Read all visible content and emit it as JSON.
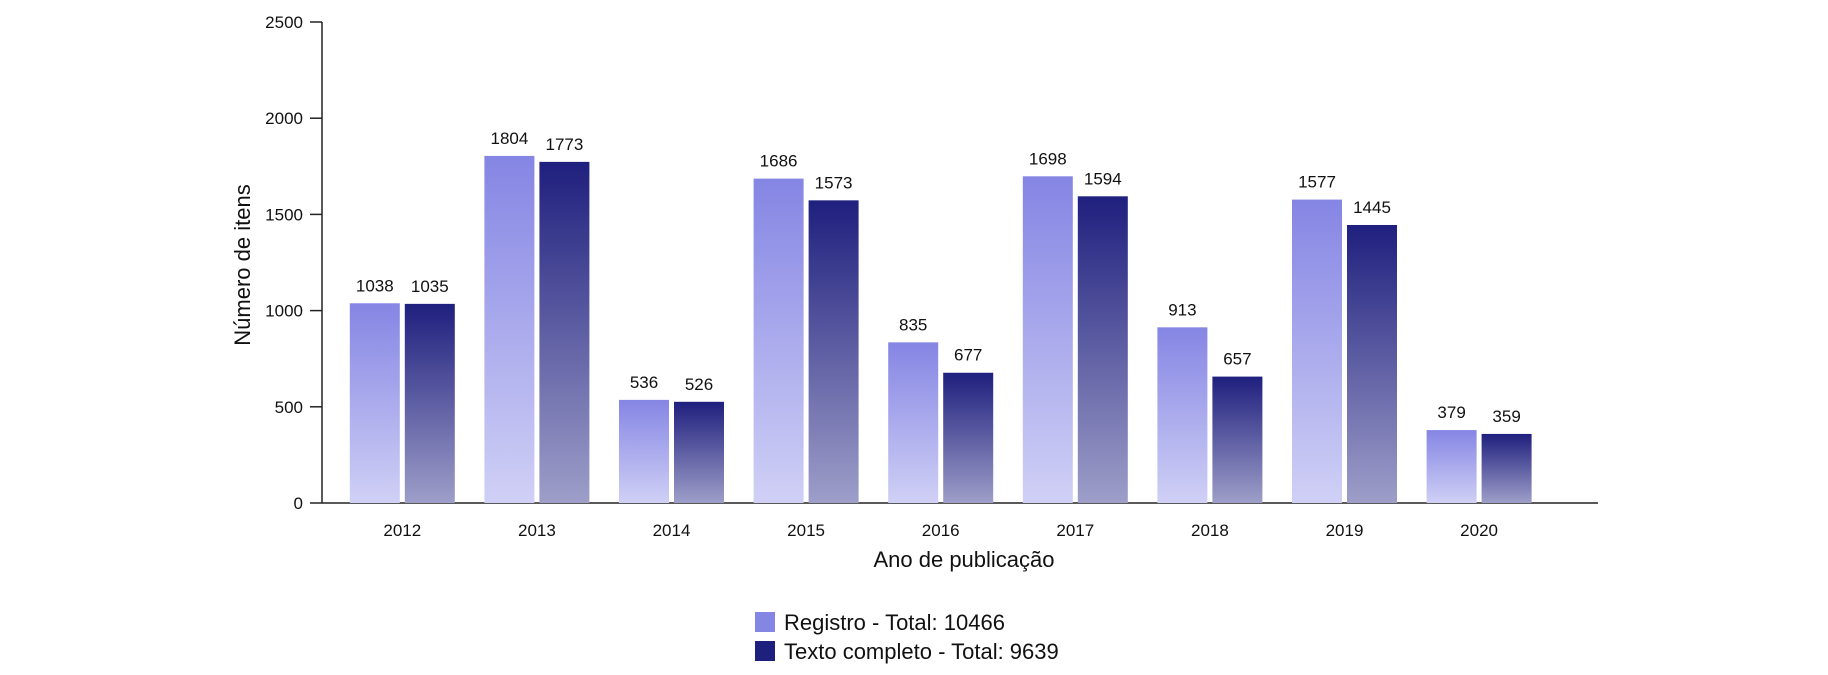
{
  "chart_data": {
    "type": "bar",
    "xlabel": "Ano de publicação",
    "ylabel": "Número de itens",
    "ylim": [
      0,
      2500
    ],
    "yticks": [
      0,
      500,
      1000,
      1500,
      2000,
      2500
    ],
    "categories": [
      "2012",
      "2013",
      "2014",
      "2015",
      "2016",
      "2017",
      "2018",
      "2019",
      "2020"
    ],
    "series": [
      {
        "name": "Registro - Total: 10466",
        "values": [
          1038,
          1804,
          536,
          1686,
          835,
          1698,
          913,
          1577,
          379
        ],
        "color_top": "#8585e4",
        "color_bottom": "#d0d0f6"
      },
      {
        "name": "Texto completo - Total: 9639",
        "values": [
          1035,
          1773,
          526,
          1573,
          677,
          1594,
          657,
          1445,
          359
        ],
        "color_top": "#1f1f7e",
        "color_bottom": "#9e9ec9"
      }
    ],
    "legend_position": "bottom-center",
    "grid": false
  }
}
